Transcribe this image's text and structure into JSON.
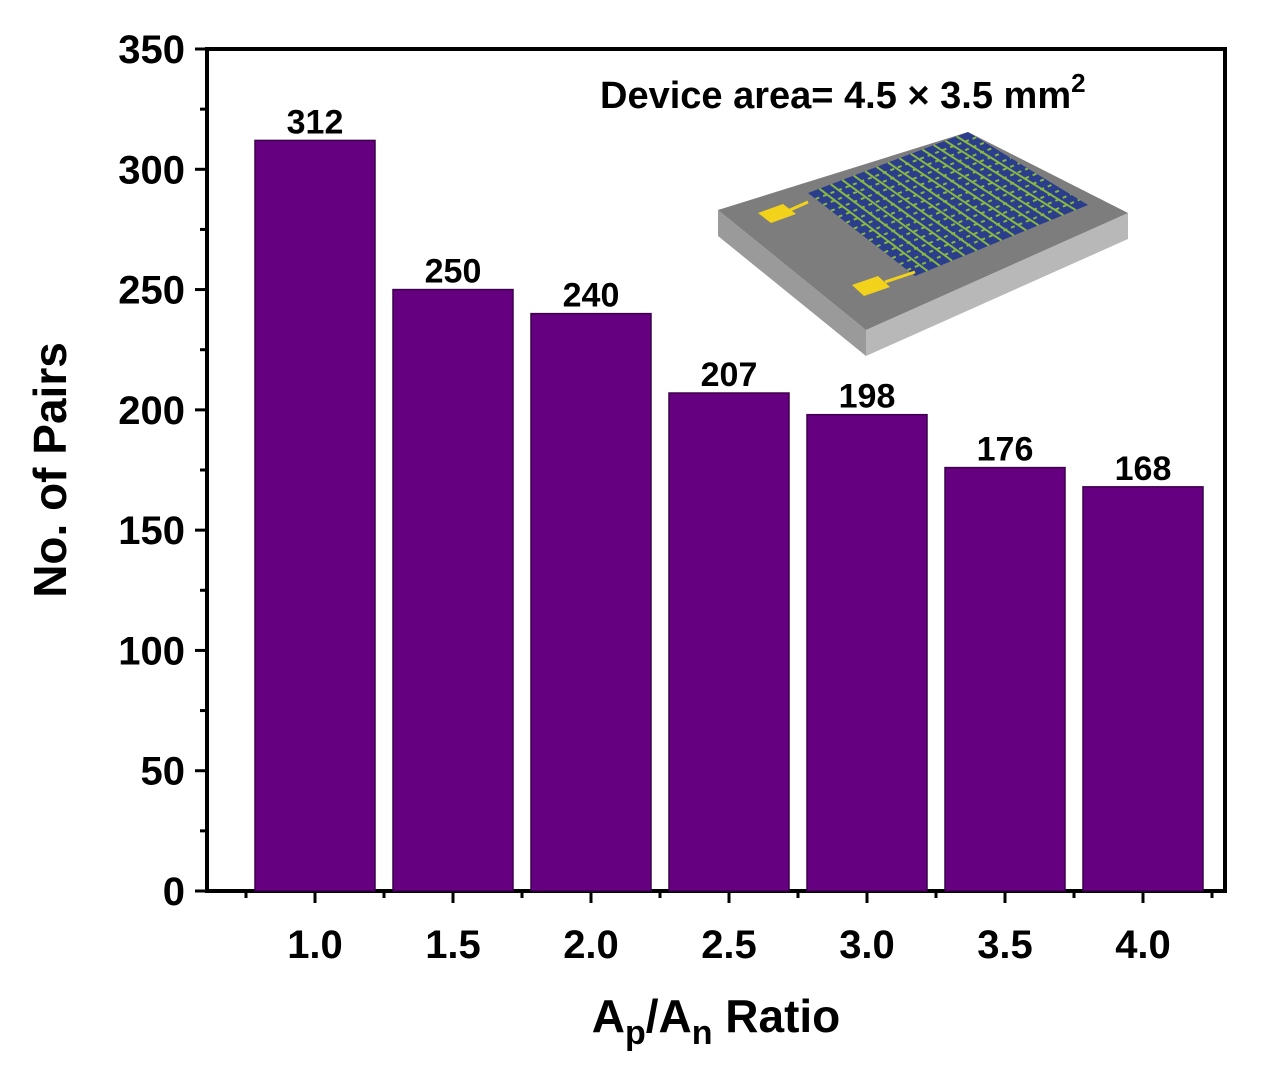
{
  "chart_data": {
    "type": "bar",
    "categories": [
      "1.0",
      "1.5",
      "2.0",
      "2.5",
      "3.0",
      "3.5",
      "4.0"
    ],
    "values": [
      312,
      250,
      240,
      207,
      198,
      176,
      168
    ],
    "data_labels": [
      "312",
      "250",
      "240",
      "207",
      "198",
      "176",
      "168"
    ],
    "ylabel": "No. of Pairs",
    "xlabel": {
      "a": "A",
      "sub_p": "p",
      "slash": "/A",
      "sub_n": "n",
      "rest": " Ratio"
    },
    "ylim": [
      0,
      350
    ],
    "yticks": [
      "0",
      "50",
      "100",
      "150",
      "200",
      "250",
      "300",
      "350"
    ],
    "bar_color": "#650080",
    "grid": false,
    "annotation": {
      "text": "Device area= 4.5 × 3.5 mm",
      "sup": "2"
    }
  },
  "inset": {
    "icon": "thermoelectric-device-icon",
    "pad_color": "#f2d21b",
    "grid_color": "#2a3e8c"
  }
}
